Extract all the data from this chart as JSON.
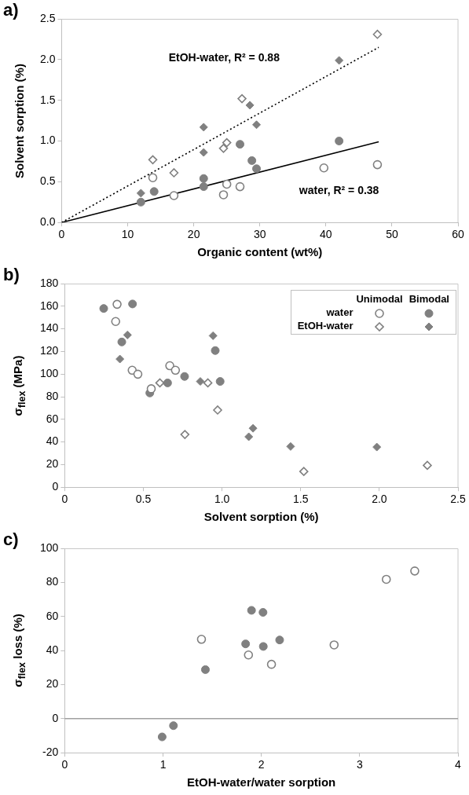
{
  "chart_data": [
    {
      "type": "scatter",
      "title": "a)",
      "xlabel": "Organic content (wt%)",
      "ylabel": "Solvent sorption (%)",
      "xlim": [
        0,
        60
      ],
      "xticks": [
        0,
        10,
        20,
        30,
        40,
        50,
        60
      ],
      "ylim": [
        0,
        2.5
      ],
      "yticks": [
        {
          "value": 0,
          "label": "0.0"
        },
        0.5,
        {
          "value": 1,
          "label": "1.0"
        },
        1.5,
        {
          "value": 2,
          "label": "2.0"
        },
        2.5
      ],
      "series": [
        {
          "color": "#808080",
          "marker": "circle",
          "x": [
            13.8,
            17,
            24.5,
            25,
            27,
            39.7,
            47.8
          ],
          "values": [
            0.55,
            0.33,
            0.34,
            0.47,
            0.44,
            0.67,
            0.71
          ]
        },
        {
          "color": "#808080",
          "marker": "circle",
          "x": [
            12,
            14,
            21.5,
            21.5,
            27,
            28.8,
            29.5,
            42
          ],
          "values": [
            0.25,
            0.38,
            0.54,
            0.44,
            0.96,
            0.76,
            0.66,
            1.0
          ]
        },
        {
          "color": "#808080",
          "marker": "diamond",
          "x": [
            13.8,
            17,
            24.5,
            25,
            27.3,
            47.8
          ],
          "values": [
            0.77,
            0.61,
            0.91,
            0.98,
            1.52,
            2.31
          ]
        },
        {
          "color": "#808080",
          "marker": "diamond",
          "x": [
            12,
            21.5,
            21.5,
            28.5,
            29.5,
            42
          ],
          "values": [
            0.36,
            1.17,
            0.86,
            1.44,
            1.2,
            1.99
          ]
        },
        {
          "type": "line",
          "color": "#000000",
          "marker": "none",
          "line_style": "solid",
          "x": [
            0,
            48
          ],
          "values": [
            0,
            0.99
          ]
        },
        {
          "type": "line",
          "color": "#000000",
          "marker": "none",
          "line_style": "dotted",
          "x": [
            0,
            48
          ],
          "values": [
            0,
            2.15
          ]
        }
      ],
      "annotations": [
        "EtOH-water, R² = 0.88",
        "water, R² = 0.38"
      ]
    },
    {
      "type": "scatter",
      "title": "b)",
      "xlabel": "Solvent sorption (%)",
      "ylabel": "σ$_{flex}$ (MPa)",
      "xlim": [
        0,
        2.5
      ],
      "xticks": [
        0,
        0.5,
        {
          "value": 1,
          "label": "1.0"
        },
        1.5,
        {
          "value": 2,
          "label": "2.0"
        },
        2.5
      ],
      "ylim": [
        0,
        180
      ],
      "yticks": [
        0,
        20,
        40,
        60,
        80,
        100,
        120,
        140,
        160,
        180
      ],
      "legend": "top right",
      "series": [
        {
          "name": "water",
          "color": "#808080",
          "marker": "circle",
          "x": [
            0.333,
            0.324,
            0.429,
            0.465,
            0.55,
            0.668,
            0.704
          ],
          "values": [
            161.7,
            146.5,
            103.4,
            99.9,
            87,
            107.4,
            103.4
          ]
        },
        {
          "color": "#808080",
          "marker": "circle",
          "x": [
            0.248,
            0.431,
            0.363,
            0.541,
            0.654,
            0.762,
            0.957,
            0.988
          ],
          "values": [
            158,
            162,
            128.4,
            83.3,
            92.2,
            97.9,
            120.8,
            93.5
          ]
        },
        {
          "name": "EtOH-water",
          "color": "#808080",
          "marker": "diamond",
          "x": [
            0.605,
            0.91,
            0.764,
            0.972,
            1.52,
            2.305
          ],
          "values": [
            92.2,
            92.2,
            46.6,
            68.2,
            13.9,
            19.3
          ]
        },
        {
          "color": "#808080",
          "marker": "diamond",
          "x": [
            0.399,
            0.351,
            0.862,
            0.943,
            1.17,
            1.197,
            1.436,
            1.984
          ],
          "values": [
            134.6,
            113.3,
            93.5,
            133.9,
            44.6,
            52.1,
            36,
            35.5
          ]
        }
      ],
      "annotations": [
        "Unimodal",
        "Bimodal"
      ]
    },
    {
      "type": "scatter",
      "title": "c)",
      "xlabel": "EtOH-water/water sorption",
      "ylabel": "σ$_{flex}$ loss (%)",
      "xlim": [
        0,
        4
      ],
      "xticks": [
        0,
        1,
        2,
        3,
        4
      ],
      "ylim": [
        -20,
        100
      ],
      "yticks": [
        -20,
        0,
        20,
        40,
        60,
        80,
        100
      ],
      "series": [
        {
          "color": "#808080",
          "marker": "circle",
          "x": [
            1.391,
            1.869,
            2.103,
            2.74,
            3.271,
            3.56
          ],
          "values": [
            46.6,
            37.4,
            31.9,
            43.3,
            81.8,
            86.7
          ]
        },
        {
          "color": "#808080",
          "marker": "circle",
          "x": [
            0.991,
            1.106,
            1.431,
            1.84,
            1.9,
            2.017,
            2.02,
            2.186
          ],
          "values": [
            -10.7,
            -4.1,
            28.8,
            43.9,
            63.6,
            62.4,
            42.4,
            46.2
          ]
        }
      ],
      "ref_lines": [
        {
          "axis": "y",
          "value": 0,
          "color": "#a0a0a0"
        }
      ]
    }
  ]
}
